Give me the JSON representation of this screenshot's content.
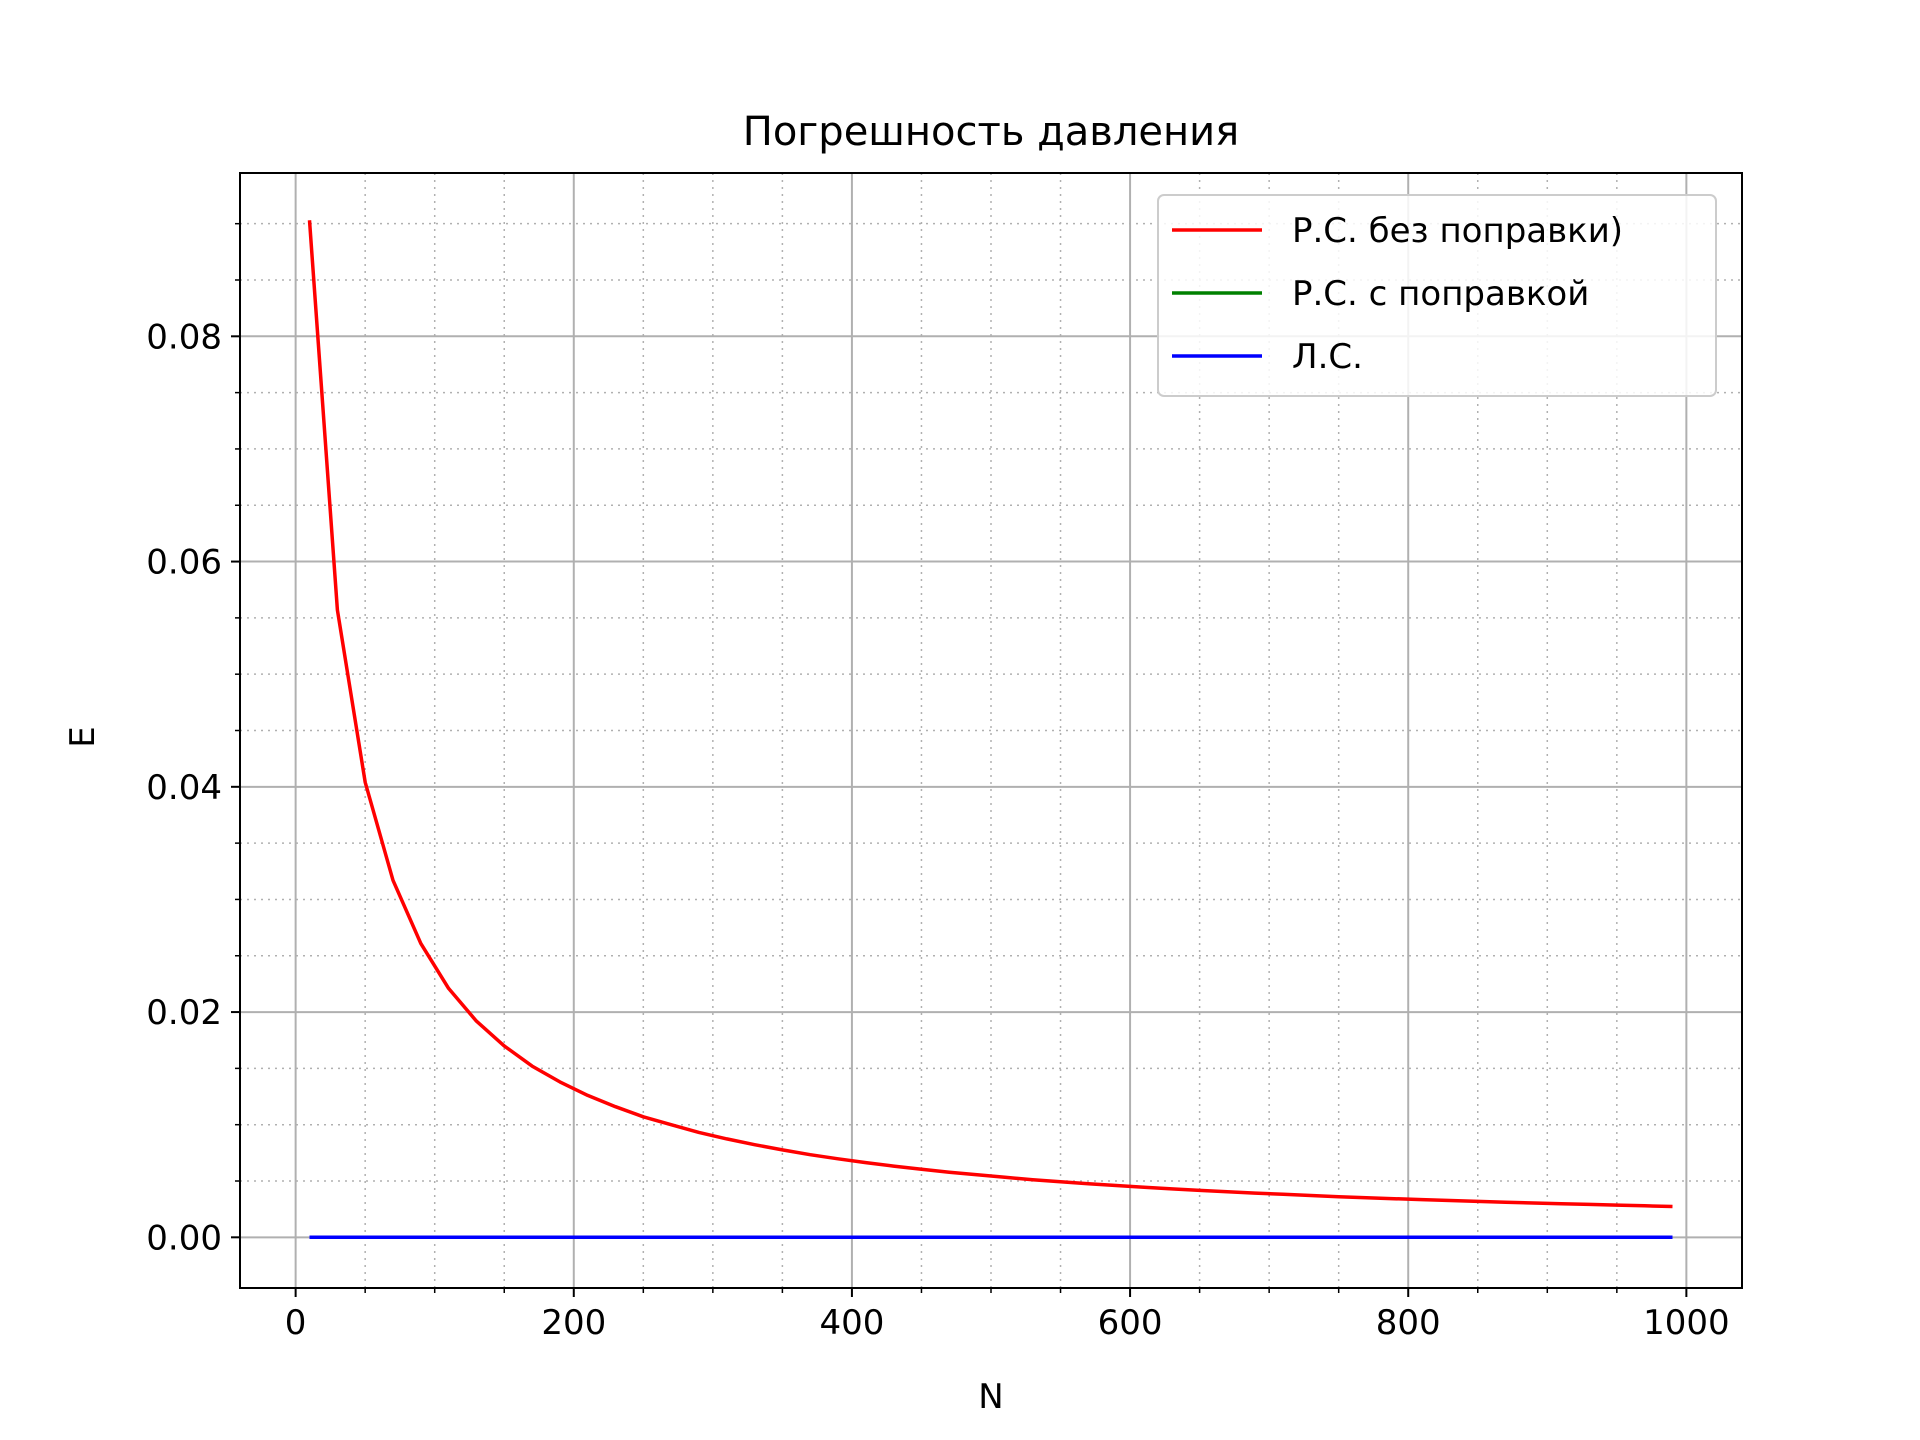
{
  "chart_data": {
    "type": "line",
    "title": "Погрешность давления",
    "xlabel": "N",
    "ylabel": "E",
    "xlim": [
      -40,
      1040
    ],
    "ylim": [
      -0.0045,
      0.0945
    ],
    "xticks": [
      0,
      200,
      400,
      600,
      800,
      1000
    ],
    "xtick_labels": [
      "0",
      "200",
      "400",
      "600",
      "800",
      "1000"
    ],
    "yticks": [
      0.0,
      0.02,
      0.04,
      0.06,
      0.08
    ],
    "ytick_labels": [
      "0.00",
      "0.02",
      "0.04",
      "0.06",
      "0.08"
    ],
    "grid": true,
    "minor_grid": true,
    "legend_position": "top-right",
    "series": [
      {
        "name": "Р.С. без поправки)",
        "color": "#ff0000",
        "x": [
          10,
          30,
          50,
          70,
          90,
          110,
          130,
          150,
          170,
          190,
          210,
          230,
          250,
          270,
          290,
          310,
          330,
          350,
          370,
          390,
          410,
          430,
          450,
          470,
          490,
          510,
          530,
          550,
          570,
          590,
          610,
          630,
          650,
          670,
          690,
          710,
          730,
          750,
          770,
          790,
          810,
          830,
          850,
          870,
          890,
          910,
          930,
          950,
          970,
          990
        ],
        "y": [
          0.0903,
          0.0557,
          0.0404,
          0.0317,
          0.0261,
          0.0221,
          0.0192,
          0.017,
          0.0152,
          0.0138,
          0.0126,
          0.0116,
          0.0107,
          0.01,
          0.00932,
          0.00874,
          0.00822,
          0.00776,
          0.00734,
          0.00697,
          0.00663,
          0.00632,
          0.00604,
          0.00578,
          0.00555,
          0.00533,
          0.00512,
          0.00493,
          0.00476,
          0.0046,
          0.00445,
          0.0043,
          0.00417,
          0.00404,
          0.00393,
          0.00382,
          0.00371,
          0.00361,
          0.00352,
          0.00343,
          0.00335,
          0.00327,
          0.00319,
          0.00312,
          0.00305,
          0.00298,
          0.00292,
          0.00286,
          0.0028,
          0.00274
        ]
      },
      {
        "name": "Р.С. с поправкой",
        "color": "#008000",
        "x": [
          10,
          990
        ],
        "y": [
          0.0,
          0.0
        ]
      },
      {
        "name": "Л.С.",
        "color": "#0000ff",
        "x": [
          10,
          990
        ],
        "y": [
          0.0,
          0.0
        ]
      }
    ]
  }
}
